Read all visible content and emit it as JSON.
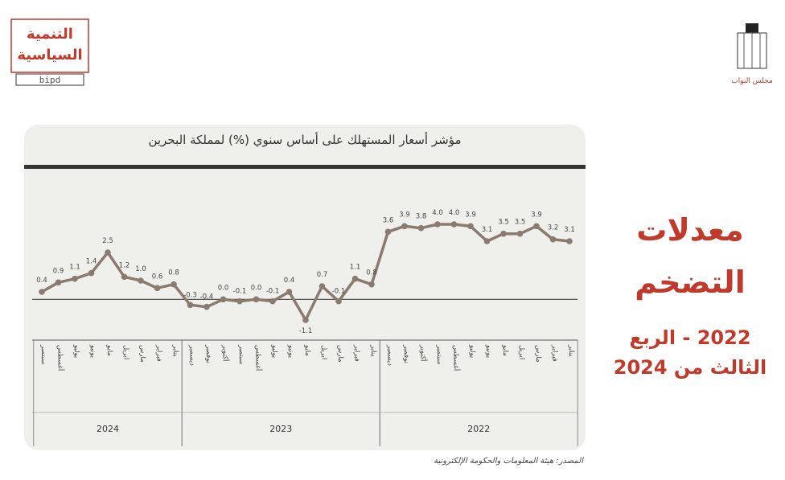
{
  "side_title": {
    "line1": "معدلات",
    "line2": "التضخم",
    "line3": "2022 - الربع",
    "line4": "الثالث من 2024"
  },
  "source_note": "المصدر: هيئة المعلومات والحكومة الإلكترونية",
  "logos": {
    "left_text_1": "التنمية",
    "left_text_2": "السياسية",
    "left_mark": "bipd",
    "right_text": "مجلس النواب"
  },
  "colors": {
    "line": "#8a7a70",
    "title_accent": "#c0392b",
    "card_bg": "#efefec"
  },
  "chart_data": {
    "type": "line",
    "title": "مؤشر أسعار المستهلك على أساس سنوي (%) لمملكة البحرين",
    "xlabel": "",
    "ylabel": "",
    "x_direction": "right-to-left",
    "categories": [
      "يناير",
      "فبراير",
      "مارس",
      "ابريل",
      "مايو",
      "يونيو",
      "يوليو",
      "أغسطس",
      "سبتمبر",
      "أكتوبر",
      "نوفمبر",
      "ديسمبر",
      "يناير",
      "فبراير",
      "مارس",
      "ابريل",
      "مايو",
      "يونيو",
      "يوليو",
      "أغسطس",
      "سبتمبر",
      "أكتوبر",
      "نوفمبر",
      "ديسمبر",
      "يناير",
      "فبراير",
      "مارس",
      "ابريل",
      "مايو",
      "يونيو",
      "يوليو",
      "أغسطس",
      "سبتمبر"
    ],
    "years": [
      {
        "label": "2022",
        "start": 0,
        "end": 11
      },
      {
        "label": "2023",
        "start": 12,
        "end": 23
      },
      {
        "label": "2024",
        "start": 24,
        "end": 32
      }
    ],
    "series": [
      {
        "values": [
          3.1,
          3.2,
          3.9,
          3.5,
          3.5,
          3.1,
          3.9,
          4.0,
          4.0,
          3.8,
          3.9,
          3.6,
          0.8,
          1.1,
          -0.1,
          0.7,
          -1.1,
          0.4,
          -0.1,
          0.0,
          -0.1,
          0.0,
          -0.4,
          -0.3,
          0.8,
          0.6,
          1.0,
          1.2,
          2.5,
          1.4,
          1.1,
          0.9,
          0.4
        ],
        "labels": [
          "3.1",
          "3.2",
          "3.9",
          "3.5",
          "3.5",
          "3.1",
          "3.9",
          "4.0",
          "4.0",
          "3.8",
          "3.9",
          "3.6",
          "0.8",
          "1.1",
          "-0.1",
          "0.7",
          "-1.1",
          "0.4",
          "-0.1",
          "0.0",
          "-0.1",
          "0.0",
          "-0.4",
          "-0.3",
          "0.8",
          "0.6",
          "1.0",
          "1.2",
          "2.5",
          "1.4",
          "1.1",
          "0.9",
          "0.4"
        ]
      }
    ],
    "ylim": [
      -1.4,
      4.6
    ],
    "grid": false,
    "legend": "none"
  }
}
